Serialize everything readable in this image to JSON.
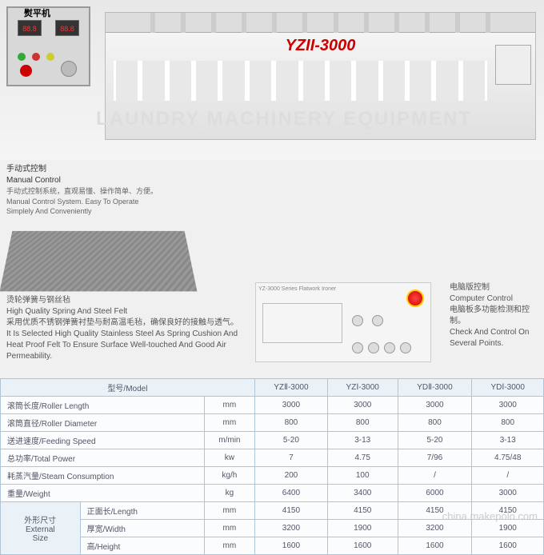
{
  "machine": {
    "model_label": "YZII-3000",
    "panel_title": "熨平机"
  },
  "watermark": {
    "brand": "LAUNDRY MACHINERY EQUIPMENT",
    "site": "china.makepolo.com"
  },
  "manual_control": {
    "cn_title": "手动式控制",
    "en_title": "Manual Control",
    "cn_desc": "手动式控制系统，直观易懂、操作简单、方便。",
    "en_desc": "Manual Control System. Easy To Operate Simplely And Conveniently"
  },
  "felt": {
    "cn_title": "烫轮弹簧与钢丝毡",
    "en_title": "High Quality Spring And Steel Felt",
    "cn_desc": "采用优质不锈钢弹簧衬垫与耐高温毛毡，确保良好的接触与透气。",
    "en_desc": "It Is Selected High Quality Stainless Steel As Spring Cushion And Heat Proof Felt To Ensure Surface Well-touched And Good Air Permeability."
  },
  "computer_control": {
    "panel_label": "YZ-3000 Series Flatwork Ironer",
    "cn_title": "电脑版控制",
    "en_title": "Computer Control",
    "cn_desc": "电脑板多功能检测和控制。",
    "en_desc": "Check And Control On Several Points."
  },
  "table": {
    "headers": [
      "型号/Model",
      "YZⅡ-3000",
      "YZⅠ-3000",
      "YDⅡ-3000",
      "YDⅠ-3000"
    ],
    "rows": [
      {
        "label": "滚筒长度/Roller Length",
        "unit": "mm",
        "vals": [
          "3000",
          "3000",
          "3000",
          "3000"
        ]
      },
      {
        "label": "滚筒直径/Roller Diameter",
        "unit": "mm",
        "vals": [
          "800",
          "800",
          "800",
          "800"
        ]
      },
      {
        "label": "送进速度/Feeding Speed",
        "unit": "m/min",
        "vals": [
          "5-20",
          "3-13",
          "5-20",
          "3-13"
        ]
      },
      {
        "label": "总功率/Total Power",
        "unit": "kw",
        "vals": [
          "7",
          "4.75",
          "7/96",
          "4.75/48"
        ]
      },
      {
        "label": "耗蒸汽量/Steam Consumption",
        "unit": "kg/h",
        "vals": [
          "200",
          "100",
          "/",
          "/"
        ]
      },
      {
        "label": "重量/Weight",
        "unit": "kg",
        "vals": [
          "6400",
          "3400",
          "6000",
          "3000"
        ]
      }
    ],
    "size_group": {
      "label_cn": "外形尺寸",
      "label_en1": "External",
      "label_en2": "Size",
      "rows": [
        {
          "label": "正面长/Length",
          "unit": "mm",
          "vals": [
            "4150",
            "4150",
            "4150",
            "4150"
          ]
        },
        {
          "label": "厚宽/Width",
          "unit": "mm",
          "vals": [
            "3200",
            "1900",
            "3200",
            "1900"
          ]
        },
        {
          "label": "高/Height",
          "unit": "mm",
          "vals": [
            "1600",
            "1600",
            "1600",
            "1600"
          ]
        }
      ]
    }
  },
  "colors": {
    "accent_red": "#cc0000",
    "table_border": "#b0c4d8",
    "table_header_bg": "#eaf2f8"
  }
}
